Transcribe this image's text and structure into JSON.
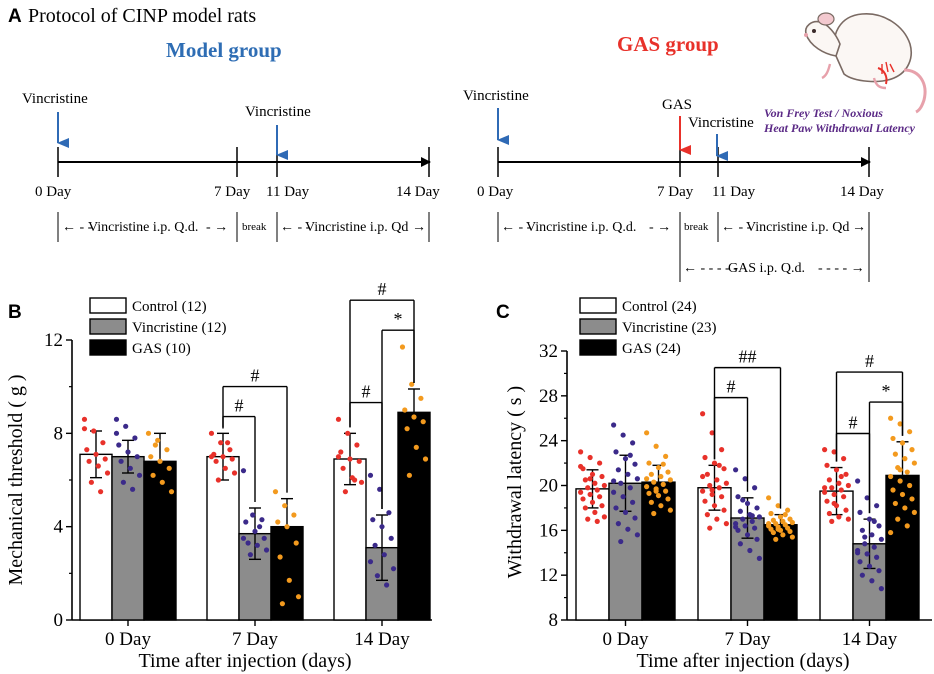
{
  "colors": {
    "model_blue": "#2e6db4",
    "gas_red": "#e8312a",
    "arrow_blue": "#2f6ab5",
    "arrow_red": "#e8312a",
    "purple_text": "#5b2a86",
    "control_fill": "#ffffff",
    "vincristine_fill": "#8c8c8c",
    "gas_fill": "#000000",
    "dot_control": "#e8312a",
    "dot_vincristine": "#3b2a8a",
    "dot_gas": "#f39a1e"
  },
  "panel_a": {
    "letter": "A",
    "heading": "Protocol of CINP model rats",
    "model": {
      "title": "Model group",
      "day_labels": [
        "0 Day",
        "7 Day",
        "11 Day",
        "14 Day"
      ],
      "arrow_labels": [
        "Vincristine",
        "Vincristine"
      ],
      "period1": "Vincristine i.p.   Q.d.",
      "break_label": "break",
      "period2": "Vincristine i.p. Qd"
    },
    "gas": {
      "title": "GAS group",
      "day_labels": [
        "0 Day",
        "7 Day",
        "11 Day",
        "14 Day"
      ],
      "arrow_labels": [
        "Vincristine",
        "GAS",
        "Vincristine"
      ],
      "period1": "Vincristine i.p.   Q.d.",
      "break_label": "break",
      "period2": "Vincristine i.p. Qd",
      "period3": "GAS i.p.  Q.d.",
      "test_line1": "Von Frey Test / Noxious",
      "test_line2": "Heat Paw Withdrawal Latency"
    }
  },
  "chart_data": [
    {
      "panel": "B",
      "type": "bar",
      "title": "",
      "xlabel": "Time after injection (days)",
      "ylabel": "Mechanical threshold ( g )",
      "categories": [
        "0 Day",
        "7 Day",
        "14 Day"
      ],
      "ylim": [
        0,
        12
      ],
      "yticks": [
        0,
        4,
        8,
        12
      ],
      "legend": [
        "Control (12)",
        "Vincristine (12)",
        "GAS (10)"
      ],
      "legend_position": "top-left",
      "series": [
        {
          "name": "Control (12)",
          "values": [
            7.1,
            7.0,
            6.9
          ],
          "errors": [
            1.0,
            1.0,
            1.1
          ],
          "points": [
            [
              8.6,
              8.1,
              7.6,
              7.3,
              7.1,
              6.9,
              6.8,
              6.6,
              6.3,
              5.9,
              5.5,
              8.2
            ],
            [
              8.0,
              7.6,
              7.3,
              7.1,
              7.0,
              6.9,
              6.8,
              6.5,
              6.3,
              6.0,
              7.6,
              7.0
            ],
            [
              8.6,
              8.0,
              7.5,
              7.2,
              6.9,
              6.8,
              6.5,
              6.1,
              5.9,
              5.5,
              6.0,
              7.0
            ]
          ]
        },
        {
          "name": "Vincristine (12)",
          "values": [
            7.0,
            3.7,
            3.1
          ],
          "errors": [
            0.7,
            1.1,
            1.4
          ],
          "points": [
            [
              8.6,
              8.3,
              7.8,
              7.5,
              7.2,
              7.0,
              6.8,
              6.5,
              6.2,
              5.9,
              5.6,
              8.0
            ],
            [
              6.4,
              4.5,
              4.3,
              4.2,
              3.8,
              3.5,
              3.3,
              3.2,
              3.0,
              2.8,
              4.0,
              3.5
            ],
            [
              6.2,
              5.6,
              4.6,
              4.3,
              4.0,
              3.5,
              3.2,
              2.8,
              2.2,
              1.9,
              1.5,
              2.5
            ]
          ]
        },
        {
          "name": "GAS (10)",
          "values": [
            6.8,
            4.0,
            8.9
          ],
          "errors": [
            1.2,
            1.2,
            1.0
          ],
          "points": [
            [
              8.0,
              7.7,
              7.3,
              7.0,
              6.8,
              6.5,
              6.2,
              5.9,
              5.5,
              7.5
            ],
            [
              5.5,
              4.9,
              4.5,
              4.2,
              4.0,
              3.3,
              2.7,
              1.7,
              1.0,
              0.7
            ],
            [
              11.7,
              10.1,
              9.5,
              9.0,
              8.7,
              8.5,
              8.2,
              7.4,
              6.9,
              6.2
            ]
          ]
        }
      ],
      "annotations": [
        {
          "label": "#",
          "from": [
            0,
            0
          ],
          "to": [
            0,
            1
          ],
          "category": "7 Day"
        },
        {
          "label": "#",
          "from": [
            0,
            0
          ],
          "to": [
            0,
            2
          ],
          "category": "7 Day"
        },
        {
          "label": "#",
          "from": [
            0,
            0
          ],
          "to": [
            0,
            1
          ],
          "category": "14 Day"
        },
        {
          "label": "#",
          "from": [
            0,
            0
          ],
          "to": [
            0,
            2
          ],
          "category": "14 Day"
        },
        {
          "label": "*",
          "from": [
            0,
            1
          ],
          "to": [
            0,
            2
          ],
          "category": "14 Day"
        }
      ]
    },
    {
      "panel": "C",
      "type": "bar",
      "title": "",
      "xlabel": "Time after injection (days)",
      "ylabel": "Withdrawal latency ( s )",
      "categories": [
        "0 Day",
        "7 Day",
        "14 Day"
      ],
      "ylim": [
        8,
        32
      ],
      "yticks": [
        8,
        12,
        16,
        20,
        24,
        28,
        32
      ],
      "legend": [
        "Control (24)",
        "Vincristine (23)",
        "GAS (24)"
      ],
      "legend_position": "top-left",
      "series": [
        {
          "name": "Control (24)",
          "values": [
            19.7,
            19.8,
            19.5
          ],
          "errors": [
            1.7,
            2.0,
            2.1
          ],
          "points": [
            [
              23.0,
              22.5,
              22.0,
              21.5,
              21.0,
              20.8,
              20.5,
              20.2,
              20.0,
              19.8,
              19.6,
              19.4,
              19.2,
              19.0,
              18.8,
              18.5,
              18.2,
              18.0,
              17.6,
              17.2,
              17.0,
              16.8,
              21.7,
              20.6
            ],
            [
              26.4,
              24.7,
              23.2,
              22.5,
              22.0,
              21.5,
              21.0,
              20.5,
              20.2,
              20.0,
              19.8,
              19.5,
              19.2,
              19.0,
              18.6,
              18.2,
              17.8,
              17.4,
              17.0,
              16.6,
              16.2,
              21.8,
              20.8,
              19.6
            ],
            [
              23.2,
              23.0,
              22.4,
              21.8,
              21.4,
              21.0,
              20.5,
              20.2,
              20.0,
              19.8,
              19.6,
              19.4,
              19.2,
              19.0,
              18.6,
              18.2,
              17.8,
              17.5,
              17.2,
              17.0,
              16.8,
              20.8,
              19.8,
              18.4
            ]
          ]
        },
        {
          "name": "Vincristine (23)",
          "values": [
            20.2,
            17.1,
            14.8
          ],
          "errors": [
            2.5,
            1.8,
            2.2
          ],
          "points": [
            [
              25.4,
              24.5,
              23.8,
              23.0,
              22.4,
              21.9,
              21.4,
              21.0,
              20.6,
              20.2,
              19.8,
              19.4,
              19.0,
              18.5,
              18.0,
              17.6,
              17.1,
              16.6,
              16.1,
              15.6,
              15.0,
              22.7,
              20.4
            ],
            [
              21.4,
              20.6,
              19.8,
              19.0,
              18.4,
              18.0,
              17.7,
              17.4,
              17.2,
              17.0,
              16.8,
              16.6,
              16.4,
              16.2,
              16.0,
              15.6,
              15.2,
              14.8,
              14.2,
              13.5,
              18.7,
              17.3,
              16.3
            ],
            [
              20.4,
              18.9,
              18.2,
              17.6,
              17.0,
              16.4,
              16.0,
              15.6,
              15.2,
              14.8,
              14.5,
              14.2,
              13.9,
              13.6,
              13.2,
              12.8,
              12.4,
              12.0,
              11.5,
              10.8,
              15.4,
              16.8,
              14.0
            ]
          ]
        },
        {
          "name": "GAS (24)",
          "values": [
            20.3,
            16.5,
            20.9
          ],
          "errors": [
            1.5,
            0.9,
            3.0
          ],
          "points": [
            [
              24.7,
              23.5,
              22.6,
              22.0,
              21.6,
              21.2,
              21.0,
              20.8,
              20.5,
              20.3,
              20.1,
              19.9,
              19.7,
              19.5,
              19.3,
              19.1,
              18.8,
              18.5,
              18.2,
              17.8,
              17.5,
              21.9,
              20.6,
              19.5
            ],
            [
              18.9,
              18.2,
              17.8,
              17.5,
              17.2,
              17.0,
              16.9,
              16.8,
              16.7,
              16.6,
              16.5,
              16.4,
              16.3,
              16.2,
              16.1,
              16.0,
              15.9,
              15.8,
              15.6,
              15.4,
              15.2,
              17.4,
              16.6,
              16.1
            ],
            [
              26.0,
              25.5,
              24.8,
              24.2,
              23.8,
              23.2,
              22.8,
              22.4,
              22.0,
              21.6,
              21.2,
              20.8,
              20.4,
              20.0,
              19.6,
              19.2,
              18.8,
              18.4,
              18.0,
              17.6,
              17.0,
              16.4,
              15.8,
              21.4
            ]
          ]
        }
      ],
      "annotations": [
        {
          "label": "#",
          "from": [
            0,
            0
          ],
          "to": [
            0,
            1
          ],
          "category": "7 Day"
        },
        {
          "label": "##",
          "from": [
            0,
            0
          ],
          "to": [
            0,
            2
          ],
          "category": "7 Day"
        },
        {
          "label": "#",
          "from": [
            0,
            0
          ],
          "to": [
            0,
            1
          ],
          "category": "14 Day"
        },
        {
          "label": "#",
          "from": [
            0,
            0
          ],
          "to": [
            0,
            2
          ],
          "category": "14 Day"
        },
        {
          "label": "*",
          "from": [
            0,
            1
          ],
          "to": [
            0,
            2
          ],
          "category": "14 Day"
        }
      ]
    }
  ]
}
